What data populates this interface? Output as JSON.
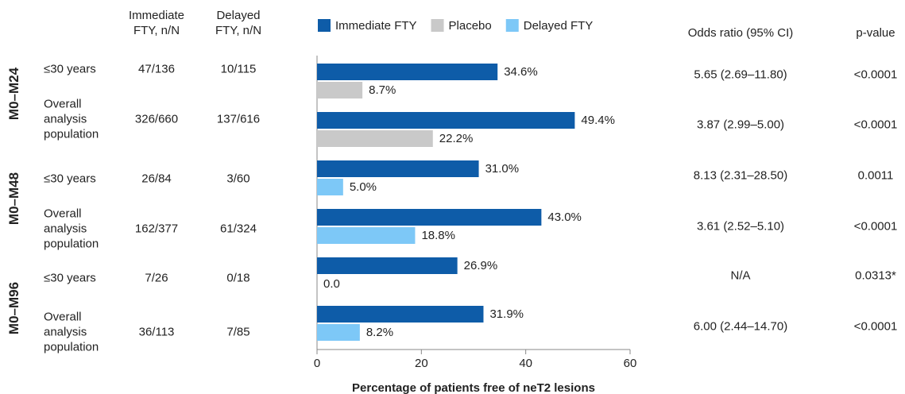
{
  "chart_data": {
    "type": "bar",
    "orientation": "horizontal",
    "x_label": "Percentage of patients free of neT2 lesions",
    "groups": [
      "M0–M24",
      "M0–M48",
      "M0–M96"
    ],
    "categories": [
      "≤30 years",
      "Overall analysis population",
      "≤30 years",
      "Overall analysis population",
      "≤30 years",
      "Overall analysis population"
    ],
    "series": [
      {
        "name": "Immediate FTY",
        "color": "#0e5ca8",
        "values": [
          34.6,
          49.4,
          31.0,
          43.0,
          26.9,
          31.9
        ],
        "value_labels": [
          "34.6%",
          "49.4%",
          "31.0%",
          "43.0%",
          "26.9%",
          "31.9%"
        ]
      },
      {
        "name": "Placebo",
        "color": "#c9c9c9",
        "values": [
          8.7,
          22.2,
          null,
          null,
          null,
          null
        ],
        "value_labels": [
          "8.7%",
          "22.2%",
          null,
          null,
          null,
          null
        ]
      },
      {
        "name": "Delayed FTY",
        "color": "#7dc8f7",
        "values": [
          null,
          null,
          5.0,
          18.8,
          0.0,
          8.2
        ],
        "value_labels": [
          null,
          null,
          "5.0%",
          "18.8%",
          "0.0",
          "8.2%"
        ]
      }
    ],
    "xlim": [
      0,
      60
    ],
    "xticks": [
      0,
      20,
      40,
      60
    ],
    "legend": "top",
    "columns": [
      {
        "header": "Immediate FTY, n/N",
        "values": [
          "47/136",
          "326/660",
          "26/84",
          "162/377",
          "7/26",
          "36/113"
        ]
      },
      {
        "header": "Delayed FTY, n/N",
        "values": [
          "10/115",
          "137/616",
          "3/60",
          "61/324",
          "0/18",
          "7/85"
        ]
      },
      {
        "header": "Odds ratio (95% CI)",
        "values": [
          "5.65 (2.69–11.80)",
          "3.87 (2.99–5.00)",
          "8.13 (2.31–28.50)",
          "3.61 (2.52–5.10)",
          "N/A",
          "6.00 (2.44–14.70)"
        ]
      },
      {
        "header": "p-value",
        "values": [
          "<0.0001",
          "<0.0001",
          "0.0011",
          "<0.0001",
          "0.0313*",
          "<0.0001"
        ]
      }
    ]
  }
}
